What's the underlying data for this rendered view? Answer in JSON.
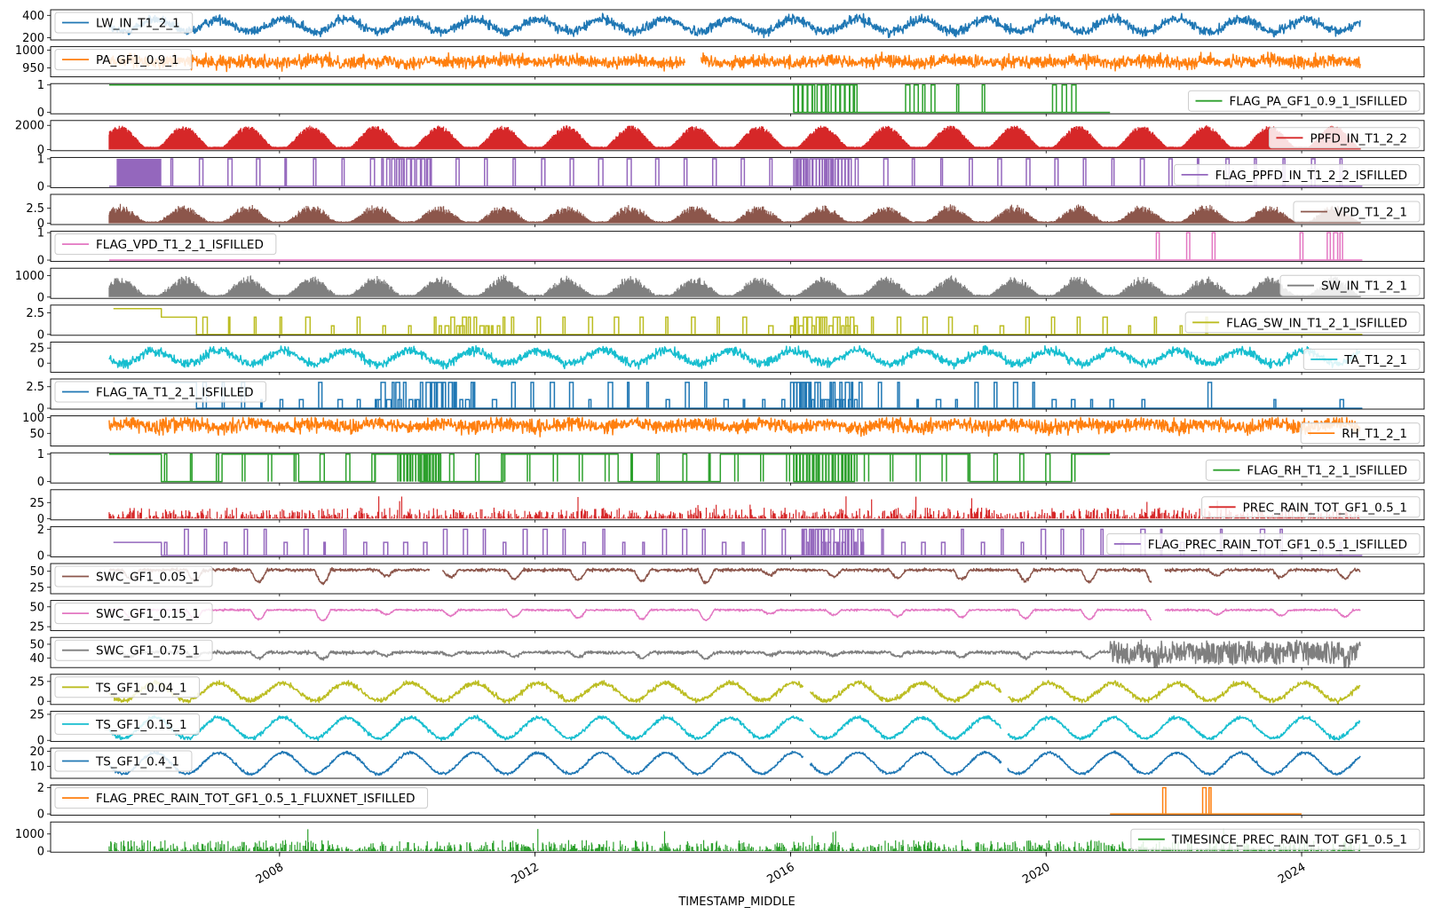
{
  "chart_data": {
    "type": "line",
    "xlabel": "TIMESTAMP_MIDDLE",
    "x_ticks": [
      "2008",
      "2012",
      "2016",
      "2020",
      "2024"
    ],
    "x_range": [
      "2004-06",
      "2025-12"
    ],
    "data_span": [
      "2005-05",
      "2024-12"
    ],
    "panels": [
      {
        "name": "LW_IN_T1_2_1",
        "color": "#1f77b4",
        "kind": "seasonal",
        "base": 310,
        "amp": 55,
        "noise": 70,
        "clipMin": 190,
        "ylim": [
          180,
          450
        ],
        "yticks": [
          200,
          400
        ],
        "legend": "upper left"
      },
      {
        "name": "PA_GF1_0.9_1",
        "color": "#ff7f0e",
        "kind": "noisy",
        "base": 968,
        "amp": 3,
        "noise": 30,
        "ylim": [
          925,
          1010
        ],
        "yticks": [
          950,
          1000
        ],
        "legend": "upper left",
        "gaps": [
          [
            2014.35,
            2014.6
          ]
        ]
      },
      {
        "name": "FLAG_PA_GF1_0.9_1_ISFILLED",
        "color": "#2ca02c",
        "kind": "flag",
        "ylim": [
          -0.05,
          1.05
        ],
        "yticks": [
          0,
          1
        ],
        "legend": "lower right",
        "baseline": 1,
        "switch": [
          2016.05,
          0
        ],
        "end": 2021.0,
        "spikes": [
          [
            2016.05,
            2017.0,
            14
          ],
          [
            2017.8,
            2018.2,
            4
          ],
          [
            2018.6,
            2019.0,
            2
          ],
          [
            2020.1,
            2020.4,
            3
          ]
        ]
      },
      {
        "name": "PPFD_IN_T1_2_2",
        "color": "#d62728",
        "kind": "burst",
        "peak": 2000,
        "noise": 1.0,
        "ylim": [
          -100,
          2400
        ],
        "yticks": [
          0,
          2000
        ],
        "legend": "lower right"
      },
      {
        "name": "FLAG_PPFD_IN_T1_2_2_ISFILLED",
        "color": "#9467bd",
        "kind": "flag",
        "ylim": [
          -0.05,
          1.05
        ],
        "yticks": [
          0,
          1
        ],
        "legend": "lower right",
        "baseline": 0,
        "end": 2024.95,
        "blocks": [
          [
            2005.45,
            2006.15
          ]
        ],
        "spikes": [
          [
            2006.3,
            2024.6,
            42
          ],
          [
            2009.6,
            2010.3,
            10
          ],
          [
            2016.05,
            2016.9,
            18
          ]
        ]
      },
      {
        "name": "VPD_T1_2_1",
        "color": "#8c564b",
        "kind": "burst",
        "peak": 3.3,
        "noise": 0.8,
        "ylim": [
          -0.2,
          4.8
        ],
        "yticks": [
          0,
          2.5
        ],
        "legend": "lower right"
      },
      {
        "name": "FLAG_VPD_T1_2_1_ISFILLED",
        "color": "#e377c2",
        "kind": "flag",
        "ylim": [
          -0.05,
          1.05
        ],
        "yticks": [
          0,
          1
        ],
        "legend": "upper left",
        "baseline": 0,
        "end": 2024.95,
        "spikes": [
          [
            2021.7,
            2021.75,
            1
          ],
          [
            2022.2,
            2022.6,
            2
          ],
          [
            2023.95,
            2024.0,
            1
          ],
          [
            2024.4,
            2024.6,
            3
          ]
        ]
      },
      {
        "name": "SW_IN_T1_2_1",
        "color": "#7f7f7f",
        "kind": "burst",
        "peak": 1050,
        "noise": 0.6,
        "ylim": [
          -60,
          1350
        ],
        "yticks": [
          0,
          1000
        ],
        "legend": "lower right"
      },
      {
        "name": "FLAG_SW_IN_T1_2_1_ISFILLED",
        "color": "#bcbd22",
        "kind": "steps",
        "ylim": [
          -0.1,
          3.4
        ],
        "yticks": [
          0,
          2.5
        ],
        "legend": "lower right",
        "levels": [
          [
            2005.4,
            3
          ],
          [
            2006.15,
            2
          ],
          [
            2006.7,
            0
          ]
        ],
        "end": 2024.95,
        "spikes": [
          [
            2006.8,
            2022.5,
            40
          ],
          [
            2010.5,
            2011.5,
            12
          ],
          [
            2016.0,
            2017.0,
            16
          ]
        ],
        "spikeH": [
          1,
          2
        ]
      },
      {
        "name": "TA_T1_2_1",
        "color": "#17becf",
        "kind": "seasonal",
        "base": 10,
        "amp": 11,
        "noise": 12,
        "ylim": [
          -15,
          35
        ],
        "yticks": [
          0,
          25
        ],
        "legend": "lower right"
      },
      {
        "name": "FLAG_TA_T1_2_1_ISFILLED",
        "color": "#1f77b4",
        "kind": "steps",
        "ylim": [
          -0.1,
          3.4
        ],
        "yticks": [
          0,
          2.5
        ],
        "legend": "upper left",
        "levels": [
          [
            2005.4,
            3
          ],
          [
            2006.7,
            0
          ]
        ],
        "end": 2024.95,
        "spikes": [
          [
            2006.8,
            2021.0,
            48
          ],
          [
            2009.5,
            2011.0,
            18
          ],
          [
            2016.0,
            2017.0,
            22
          ],
          [
            2021.5,
            2024.6,
            4
          ]
        ],
        "spikeH": [
          1,
          3
        ]
      },
      {
        "name": "RH_T1_2_1",
        "color": "#ff7f0e",
        "kind": "band",
        "base": 75,
        "noise": 40,
        "clipMax": 100,
        "ylim": [
          10,
          105
        ],
        "yticks": [
          50,
          100
        ],
        "legend": "lower right"
      },
      {
        "name": "FLAG_RH_T1_2_1_ISFILLED",
        "color": "#2ca02c",
        "kind": "flag",
        "ylim": [
          -0.05,
          1.05
        ],
        "yticks": [
          0,
          1
        ],
        "legend": "lower right",
        "baseline": 1,
        "end": 2021.0,
        "blocks": [],
        "toggles": [
          2006.15,
          2007.1,
          2008.3,
          2009.5,
          2010.2,
          2011.5,
          2013.3,
          2014.9,
          2016.05,
          2017.0,
          2018.8,
          2020.4
        ],
        "spikes": [
          [
            2006.2,
            2020.4,
            36
          ],
          [
            2009.9,
            2010.5,
            14
          ],
          [
            2016.05,
            2017.0,
            20
          ]
        ]
      },
      {
        "name": "PREC_RAIN_TOT_GF1_0.5_1",
        "color": "#d62728",
        "kind": "spiky",
        "peak": 38,
        "ylim": [
          -2,
          45
        ],
        "yticks": [
          0,
          25
        ],
        "legend": "lower right"
      },
      {
        "name": "FLAG_PREC_RAIN_TOT_GF1_0.5_1_ISFILLED",
        "color": "#9467bd",
        "kind": "steps",
        "ylim": [
          -0.1,
          2.2
        ],
        "yticks": [
          0,
          2
        ],
        "legend": "lower right",
        "levels": [
          [
            2005.4,
            1
          ],
          [
            2006.15,
            0
          ]
        ],
        "end": 2024.95,
        "spikes": [
          [
            2006.2,
            2024.6,
            60
          ],
          [
            2016.2,
            2017.1,
            20
          ]
        ],
        "spikeH": [
          1,
          2
        ]
      },
      {
        "name": "SWC_GF1_0.05_1",
        "color": "#8c564b",
        "kind": "soil",
        "base": 52,
        "drop": 22,
        "noise": 4,
        "ylim": [
          15,
          62
        ],
        "yticks": [
          25,
          50
        ],
        "legend": "upper left",
        "gaps": [
          [
            2010.35,
            2010.55
          ],
          [
            2021.65,
            2021.85
          ]
        ]
      },
      {
        "name": "SWC_GF1_0.15_1",
        "color": "#e377c2",
        "kind": "soil",
        "base": 46,
        "drop": 14,
        "noise": 2,
        "ylim": [
          20,
          58
        ],
        "yticks": [
          25,
          50
        ],
        "legend": "upper left",
        "gaps": [
          [
            2021.65,
            2021.85
          ]
        ]
      },
      {
        "name": "SWC_GF1_0.75_1",
        "color": "#7f7f7f",
        "kind": "soil",
        "base": 44,
        "drop": 5,
        "noise": 2,
        "ylim": [
          33,
          55
        ],
        "yticks": [
          40,
          50
        ],
        "legend": "upper left",
        "late": [
          2021.0,
          8
        ]
      },
      {
        "name": "TS_GF1_0.04_1",
        "color": "#bcbd22",
        "kind": "seasonal",
        "base": 12,
        "amp": 11,
        "noise": 5,
        "ylim": [
          -4,
          34
        ],
        "yticks": [
          0,
          25
        ],
        "legend": "upper left",
        "gaps": [
          [
            2016.2,
            2016.3
          ],
          [
            2019.3,
            2019.4
          ]
        ]
      },
      {
        "name": "TS_GF1_0.15_1",
        "color": "#17becf",
        "kind": "seasonal",
        "base": 12,
        "amp": 10,
        "noise": 3,
        "ylim": [
          -1,
          28
        ],
        "yticks": [
          0,
          25
        ],
        "legend": "upper left",
        "gaps": [
          [
            2016.2,
            2016.3
          ],
          [
            2019.3,
            2019.4
          ]
        ]
      },
      {
        "name": "TS_GF1_0.4_1",
        "color": "#1f77b4",
        "kind": "seasonal",
        "base": 12,
        "amp": 7,
        "noise": 1.5,
        "ylim": [
          2,
          22
        ],
        "yticks": [
          10,
          20
        ],
        "legend": "upper left",
        "gaps": [
          [
            2016.2,
            2016.3
          ],
          [
            2019.3,
            2019.4
          ]
        ]
      },
      {
        "name": "FLAG_PREC_RAIN_TOT_GF1_0.5_1_FLUXNET_ISFILLED",
        "color": "#ff7f0e",
        "kind": "flagrange",
        "ylim": [
          -0.1,
          2.2
        ],
        "yticks": [
          0,
          2
        ],
        "legend": "upper left",
        "start": 2021.0,
        "end": 2024.0,
        "spikes": [
          [
            2021.8,
            2021.85,
            1
          ],
          [
            2022.45,
            2022.55,
            2
          ]
        ],
        "spikeH": [
          2,
          2
        ]
      },
      {
        "name": "TIMESINCE_PREC_RAIN_TOT_GF1_0.5_1",
        "color": "#2ca02c",
        "kind": "spiky",
        "peak": 1450,
        "ylim": [
          -60,
          1700
        ],
        "yticks": [
          0,
          1000
        ],
        "legend": "lower right"
      }
    ]
  }
}
